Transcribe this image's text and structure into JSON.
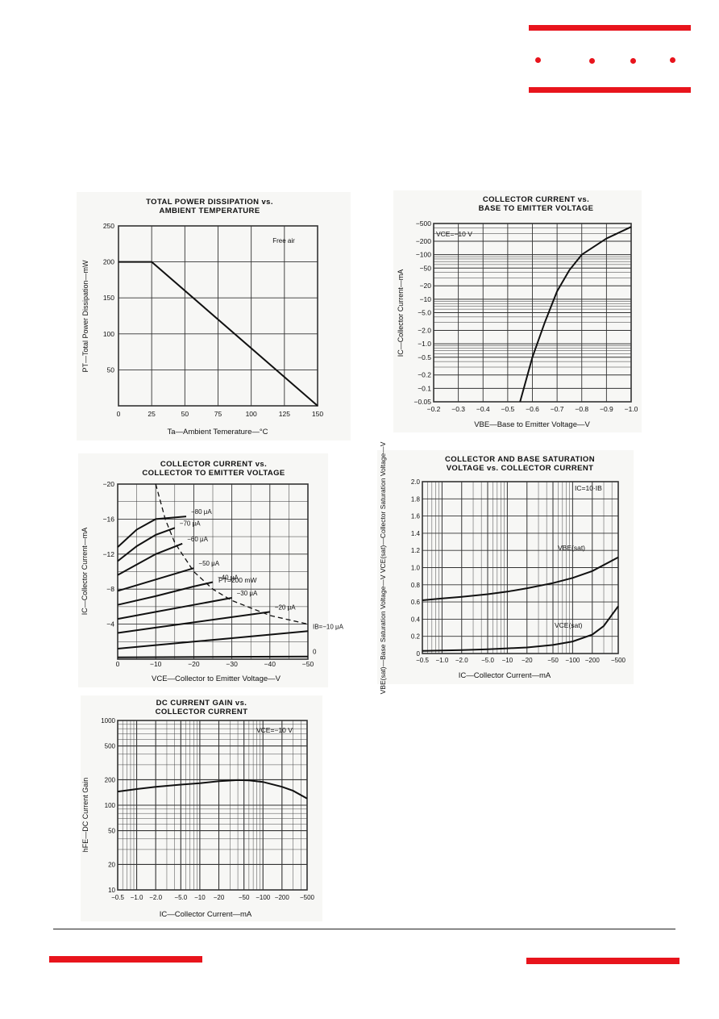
{
  "brand": {
    "accent": "#e8141c",
    "grid_color": "#333333"
  },
  "chart_data": [
    {
      "id": "c1",
      "type": "line",
      "title": [
        "TOTAL POWER DISSIPATION vs.",
        "AMBIENT TEMPERATURE"
      ],
      "xlabel": "Ta—Ambient Temerature—°C",
      "ylabel": "PT—Total Power Dissipation—mW",
      "xlim": [
        0,
        150
      ],
      "ylim": [
        0,
        250
      ],
      "xticks": [
        "0",
        "25",
        "50",
        "75",
        "100",
        "125",
        "150"
      ],
      "yticks": [
        "50",
        "100",
        "150",
        "200",
        "250"
      ],
      "annotation": "Free air",
      "series": [
        {
          "name": "PT",
          "x": [
            0,
            25,
            150
          ],
          "y": [
            200,
            200,
            0
          ]
        }
      ]
    },
    {
      "id": "c2",
      "type": "line",
      "title": [
        "COLLECTOR CURRENT vs.",
        "BASE TO EMITTER VOLTAGE"
      ],
      "xlabel": "VBE—Base to Emitter Voltage—V",
      "ylabel": "IC—Collector Current—mA",
      "xlim": [
        -0.2,
        -1.0
      ],
      "ylim": [
        -0.05,
        -500
      ],
      "yscale": "log",
      "xticks": [
        "−0.2",
        "−0.3",
        "−0.4",
        "−0.5",
        "−0.6",
        "−0.7",
        "−0.8",
        "−0.9",
        "−1.0"
      ],
      "yticks": [
        "−500",
        "−200",
        "−100",
        "−50",
        "−20",
        "−10",
        "−5.0",
        "−2.0",
        "−1.0",
        "−0.5",
        "−0.2",
        "−0.1",
        "−0.05"
      ],
      "annotation": "VCE=−10 V",
      "series": [
        {
          "name": "IC",
          "x": [
            -0.55,
            -0.6,
            -0.65,
            -0.7,
            -0.75,
            -0.8,
            -0.9,
            -1.0
          ],
          "y": [
            -0.05,
            -0.5,
            -3.0,
            -15,
            -45,
            -100,
            -230,
            -420
          ]
        }
      ]
    },
    {
      "id": "c3",
      "type": "line",
      "title": [
        "COLLECTOR CURRENT vs.",
        "COLLECTOR TO EMITTER VOLTAGE"
      ],
      "xlabel": "VCE—Collector to Emitter Voltage—V",
      "ylabel": "IC—Collector Current—mA",
      "xlim": [
        0,
        -50
      ],
      "ylim": [
        0,
        -20
      ],
      "xticks": [
        "0",
        "−10",
        "−20",
        "−30",
        "−40",
        "−50"
      ],
      "yticks": [
        "−4",
        "−8",
        "−12",
        "−16",
        "−20"
      ],
      "annotation": "PT=200 mW",
      "series": [
        {
          "name": "0",
          "x": [
            0,
            -50
          ],
          "y": [
            -0.2,
            -0.3
          ]
        },
        {
          "name": "IB=−10 μA",
          "x": [
            0,
            -10,
            -20,
            -30,
            -40,
            -50
          ],
          "y": [
            -1.2,
            -1.6,
            -2.0,
            -2.4,
            -2.8,
            -3.2
          ]
        },
        {
          "name": "−20 μA",
          "x": [
            0,
            -10,
            -20,
            -30,
            -40
          ],
          "y": [
            -3.0,
            -3.6,
            -4.2,
            -4.8,
            -5.4
          ]
        },
        {
          "name": "−30 μA",
          "x": [
            0,
            -10,
            -20,
            -30
          ],
          "y": [
            -4.6,
            -5.4,
            -6.2,
            -7.0
          ]
        },
        {
          "name": "−40 μA",
          "x": [
            0,
            -10,
            -20,
            -25
          ],
          "y": [
            -6.2,
            -7.2,
            -8.3,
            -8.8
          ]
        },
        {
          "name": "−50 μA",
          "x": [
            0,
            -10,
            -20
          ],
          "y": [
            -7.8,
            -9.1,
            -10.4
          ]
        },
        {
          "name": "−60 μA",
          "x": [
            0,
            -5,
            -10,
            -17
          ],
          "y": [
            -9.6,
            -10.8,
            -12.0,
            -13.2
          ]
        },
        {
          "name": "−70 μA",
          "x": [
            0,
            -5,
            -10,
            -15
          ],
          "y": [
            -11.2,
            -12.9,
            -14.2,
            -15.0
          ]
        },
        {
          "name": "−80 μA",
          "x": [
            0,
            -5,
            -10,
            -18
          ],
          "y": [
            -12.8,
            -14.8,
            -16.0,
            -16.3
          ]
        },
        {
          "name": "PT=200 mW",
          "dashed": true,
          "x": [
            -10,
            -12.5,
            -15,
            -20,
            -25,
            -30,
            -40,
            -50
          ],
          "y": [
            -20,
            -16,
            -13.3,
            -10,
            -8,
            -6.7,
            -5,
            -4
          ]
        }
      ]
    },
    {
      "id": "c4",
      "type": "line",
      "title": [
        "COLLECTOR AND BASE SATURATION",
        "VOLTAGE vs. COLLECTOR CURRENT"
      ],
      "xlabel": "IC—Collector Current—mA",
      "ylabel": "VBE(sat)—Base Saturation Voltage—V  VCE(sat)—Collector Saturation Voltage—V",
      "xscale": "log",
      "xlim": [
        -0.5,
        -500
      ],
      "ylim": [
        0,
        2.0
      ],
      "xticks": [
        "−0.5",
        "−1.0",
        "−2.0",
        "−5.0",
        "−10",
        "−20",
        "−50",
        "−100",
        "−200",
        "−500"
      ],
      "yticks": [
        "0",
        "0.2",
        "0.4",
        "0.6",
        "0.8",
        "1.0",
        "1.2",
        "1.4",
        "1.6",
        "1.8",
        "2.0"
      ],
      "annotation": "IC=10·IB",
      "series": [
        {
          "name": "VBE(sat)",
          "x": [
            -0.5,
            -1,
            -2,
            -5,
            -10,
            -20,
            -50,
            -100,
            -200,
            -500
          ],
          "y": [
            0.62,
            0.64,
            0.66,
            0.69,
            0.72,
            0.76,
            0.82,
            0.88,
            0.96,
            1.12
          ]
        },
        {
          "name": "VCE(sat)",
          "x": [
            -0.5,
            -1,
            -2,
            -5,
            -10,
            -20,
            -50,
            -100,
            -200,
            -300,
            -500
          ],
          "y": [
            0.03,
            0.035,
            0.04,
            0.05,
            0.06,
            0.07,
            0.1,
            0.14,
            0.22,
            0.32,
            0.55
          ]
        }
      ]
    },
    {
      "id": "c5",
      "type": "line",
      "title": [
        "DC CURRENT GAIN vs.",
        "COLLECTOR CURRENT"
      ],
      "xlabel": "IC—Collector Current—mA",
      "ylabel": "hFE—DC Current Gain",
      "xscale": "log",
      "yscale": "log",
      "xlim": [
        -0.5,
        -500
      ],
      "ylim": [
        10,
        1000
      ],
      "xticks": [
        "−0.5",
        "−1.0",
        "−2.0",
        "−5.0",
        "−10",
        "−20",
        "−50",
        "−100",
        "−200",
        "−500"
      ],
      "yticks": [
        "10",
        "20",
        "50",
        "100",
        "200",
        "500",
        "1000"
      ],
      "annotation": "VCE=−10 V",
      "series": [
        {
          "name": "hFE",
          "x": [
            -0.5,
            -1,
            -2,
            -5,
            -10,
            -20,
            -40,
            -60,
            -100,
            -200,
            -300,
            -500
          ],
          "y": [
            145,
            155,
            165,
            175,
            182,
            192,
            198,
            196,
            188,
            165,
            148,
            120
          ]
        }
      ]
    }
  ]
}
